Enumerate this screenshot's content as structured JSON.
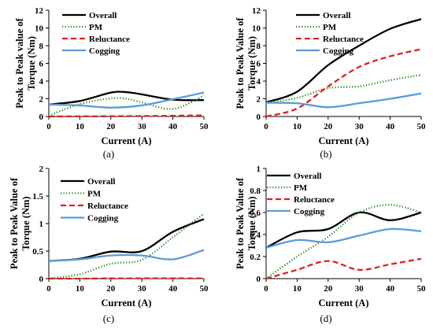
{
  "figure": {
    "colors": {
      "Overall": "#000000",
      "PM": "#1e8a1e",
      "Reluctance": "#e0201b",
      "Cogging": "#5b9bd5"
    },
    "styles": {
      "Overall": "solid",
      "PM": "dotted",
      "Reluctance": "dashed",
      "Cogging": "solid"
    }
  },
  "chart_data": [
    {
      "type": "line",
      "caption": "(a)",
      "xlabel": "Current (A)",
      "ylabel": [
        "Peak to Peak value of",
        "Torque (Nm)"
      ],
      "xlim": [
        0,
        50
      ],
      "ylim": [
        0,
        12
      ],
      "xticks": [
        0,
        10,
        20,
        30,
        40,
        50
      ],
      "yticks": [
        0,
        2,
        4,
        6,
        8,
        10,
        12
      ],
      "legend_position": "top-left",
      "series": [
        {
          "name": "Overall",
          "x": [
            0,
            10,
            20,
            25,
            30,
            40,
            50
          ],
          "y": [
            1.35,
            1.75,
            2.7,
            2.75,
            2.5,
            1.9,
            1.85
          ]
        },
        {
          "name": "PM",
          "x": [
            0,
            10,
            20,
            25,
            30,
            40,
            50
          ],
          "y": [
            0.1,
            1.4,
            2.05,
            2.0,
            1.6,
            0.85,
            2.35
          ]
        },
        {
          "name": "Reluctance",
          "x": [
            0,
            10,
            20,
            30,
            40,
            50
          ],
          "y": [
            0,
            0.02,
            0.03,
            0.05,
            0.08,
            0.12
          ]
        },
        {
          "name": "Cogging",
          "x": [
            0,
            10,
            20,
            30,
            40,
            50
          ],
          "y": [
            1.35,
            1.25,
            1.0,
            1.25,
            1.95,
            2.7
          ]
        }
      ]
    },
    {
      "type": "line",
      "caption": "(b)",
      "xlabel": "Current (A)",
      "ylabel": [
        "Peak to Peak Value of",
        "Torque (Nm)"
      ],
      "xlim": [
        0,
        50
      ],
      "ylim": [
        0,
        12
      ],
      "xticks": [
        0,
        10,
        20,
        30,
        40,
        50
      ],
      "yticks": [
        0,
        2,
        4,
        6,
        8,
        10,
        12
      ],
      "legend_position": "top-right",
      "series": [
        {
          "name": "Overall",
          "x": [
            0,
            10,
            20,
            30,
            40,
            50
          ],
          "y": [
            1.6,
            2.8,
            5.8,
            8.0,
            9.9,
            11.0
          ]
        },
        {
          "name": "PM",
          "x": [
            0,
            10,
            20,
            30,
            40,
            50
          ],
          "y": [
            1.55,
            2.1,
            3.2,
            3.4,
            4.1,
            4.7
          ]
        },
        {
          "name": "Reluctance",
          "x": [
            0,
            10,
            20,
            30,
            40,
            50
          ],
          "y": [
            0,
            0.9,
            3.4,
            5.6,
            6.8,
            7.6
          ]
        },
        {
          "name": "Cogging",
          "x": [
            0,
            10,
            20,
            30,
            40,
            50
          ],
          "y": [
            1.55,
            1.5,
            1.05,
            1.5,
            2.0,
            2.6
          ]
        }
      ]
    },
    {
      "type": "line",
      "caption": "(c)",
      "xlabel": "Current (A)",
      "ylabel": [
        "Peak to Peak Value of",
        "Torque (Nm)"
      ],
      "xlim": [
        0,
        50
      ],
      "ylim": [
        0,
        2
      ],
      "xticks": [
        0,
        10,
        20,
        30,
        40,
        50
      ],
      "yticks": [
        0,
        0.5,
        1,
        1.5,
        2
      ],
      "legend_position": "top-right",
      "series": [
        {
          "name": "Overall",
          "x": [
            0,
            10,
            20,
            30,
            40,
            50
          ],
          "y": [
            0.32,
            0.36,
            0.49,
            0.5,
            0.85,
            1.08
          ]
        },
        {
          "name": "PM",
          "x": [
            0,
            10,
            20,
            30,
            40,
            50
          ],
          "y": [
            0.0,
            0.08,
            0.27,
            0.34,
            0.75,
            1.18
          ]
        },
        {
          "name": "Reluctance",
          "x": [
            0,
            10,
            20,
            30,
            40,
            50
          ],
          "y": [
            0,
            0,
            0.005,
            0.005,
            0.005,
            0.005
          ]
        },
        {
          "name": "Cogging",
          "x": [
            0,
            10,
            20,
            30,
            40,
            50
          ],
          "y": [
            0.32,
            0.35,
            0.42,
            0.42,
            0.35,
            0.52
          ]
        }
      ]
    },
    {
      "type": "line",
      "caption": "(d)",
      "xlabel": "Current (A)",
      "ylabel": [
        "Peak to Peak Value of",
        "Torque (Nm)"
      ],
      "xlim": [
        0,
        50
      ],
      "ylim": [
        0,
        1
      ],
      "xticks": [
        0,
        10,
        20,
        30,
        40,
        50
      ],
      "yticks": [
        0,
        0.2,
        0.4,
        0.6,
        0.8,
        1
      ],
      "legend_position": "top-left",
      "series": [
        {
          "name": "Overall",
          "x": [
            0,
            10,
            20,
            30,
            40,
            50
          ],
          "y": [
            0.28,
            0.42,
            0.45,
            0.6,
            0.53,
            0.6
          ]
        },
        {
          "name": "PM",
          "x": [
            0,
            10,
            20,
            30,
            40,
            50
          ],
          "y": [
            0.0,
            0.2,
            0.38,
            0.6,
            0.67,
            0.6
          ]
        },
        {
          "name": "Reluctance",
          "x": [
            0,
            10,
            20,
            30,
            40,
            50
          ],
          "y": [
            0,
            0.08,
            0.16,
            0.08,
            0.13,
            0.18
          ]
        },
        {
          "name": "Cogging",
          "x": [
            0,
            10,
            20,
            30,
            40,
            50
          ],
          "y": [
            0.28,
            0.35,
            0.33,
            0.39,
            0.45,
            0.43
          ]
        }
      ]
    }
  ]
}
